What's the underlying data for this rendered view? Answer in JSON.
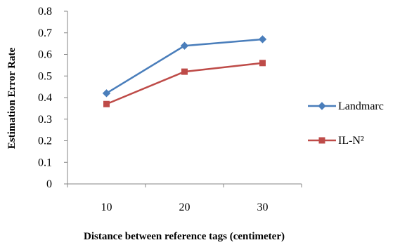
{
  "chart_data": {
    "type": "line",
    "categories": [
      "10",
      "20",
      "30"
    ],
    "series": [
      {
        "name": "Landmarc",
        "values": [
          0.42,
          0.64,
          0.67
        ],
        "color": "#4a7ebb",
        "marker": "diamond"
      },
      {
        "name": "IL-N²",
        "values": [
          0.37,
          0.52,
          0.56
        ],
        "color": "#be4b48",
        "marker": "square"
      }
    ],
    "title": "",
    "xlabel": "Distance between reference tags (centimeter)",
    "ylabel": "Estimation Error Rate",
    "ylim": [
      0,
      0.8
    ],
    "yticks": [
      0,
      0.1,
      0.2,
      0.3,
      0.4,
      0.5,
      0.6,
      0.7,
      0.8
    ],
    "ytick_labels": [
      "0",
      "0.1",
      "0.2",
      "0.3",
      "0.4",
      "0.5",
      "0.6",
      "0.7",
      "0.8"
    ],
    "grid": false,
    "legend_position": "right"
  }
}
